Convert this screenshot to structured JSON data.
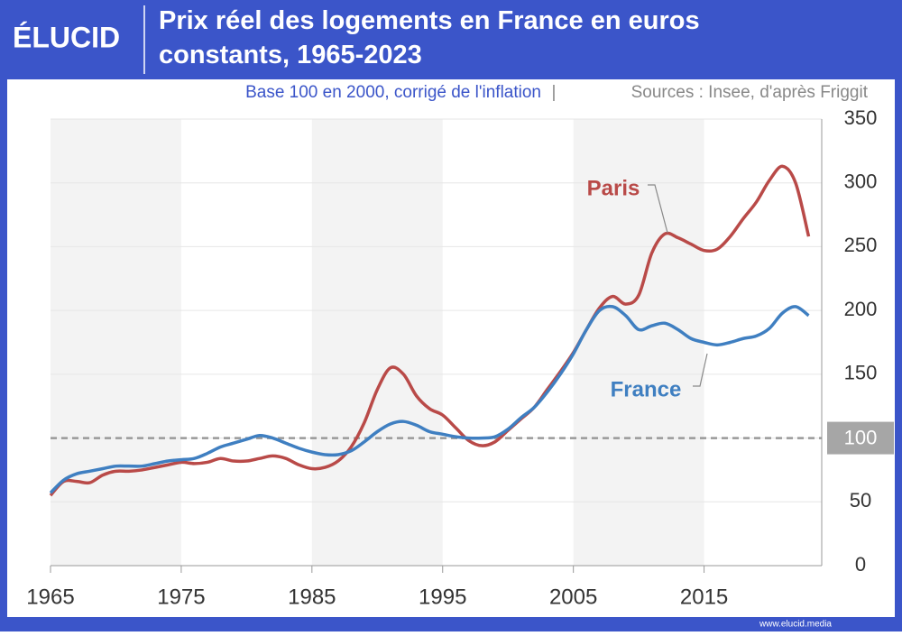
{
  "brand": "ÉLUCID",
  "footer": "www.elucid.media",
  "chart_data": {
    "type": "line",
    "title": "Prix réel des logements en France en euros constants, 1965-2023",
    "subtitle": "Base 100 en 2000, corrigé de l'inflation",
    "source": "Sources : Insee, d'après Friggit",
    "x": [
      1965,
      1966,
      1967,
      1968,
      1969,
      1970,
      1971,
      1972,
      1973,
      1974,
      1975,
      1976,
      1977,
      1978,
      1979,
      1980,
      1981,
      1982,
      1983,
      1984,
      1985,
      1986,
      1987,
      1988,
      1989,
      1990,
      1991,
      1992,
      1993,
      1994,
      1995,
      1996,
      1997,
      1998,
      1999,
      2000,
      2001,
      2002,
      2003,
      2004,
      2005,
      2006,
      2007,
      2008,
      2009,
      2010,
      2011,
      2012,
      2013,
      2014,
      2015,
      2016,
      2017,
      2018,
      2019,
      2020,
      2021,
      2022,
      2023
    ],
    "series": [
      {
        "name": "Paris",
        "color": "#b94a48",
        "values": [
          55,
          66,
          66,
          65,
          71,
          74,
          74,
          75,
          77,
          79,
          81,
          80,
          81,
          84,
          82,
          82,
          84,
          86,
          84,
          79,
          76,
          77,
          82,
          93,
          112,
          138,
          155,
          150,
          133,
          123,
          118,
          108,
          98,
          94,
          97,
          106,
          115,
          124,
          138,
          152,
          167,
          185,
          202,
          211,
          205,
          212,
          245,
          260,
          257,
          252,
          247,
          248,
          258,
          272,
          285,
          302,
          313,
          300,
          258
        ]
      },
      {
        "name": "France",
        "color": "#3f7fc1",
        "values": [
          57,
          67,
          72,
          74,
          76,
          78,
          78,
          78,
          80,
          82,
          83,
          84,
          88,
          93,
          96,
          99,
          102,
          100,
          96,
          92,
          89,
          87,
          87,
          90,
          97,
          105,
          111,
          113,
          110,
          105,
          103,
          101,
          100,
          100,
          101,
          107,
          116,
          124,
          136,
          150,
          166,
          185,
          200,
          203,
          196,
          185,
          188,
          190,
          185,
          178,
          175,
          173,
          175,
          178,
          180,
          186,
          198,
          203,
          196
        ]
      }
    ],
    "xlim": [
      1965,
      2024
    ],
    "xticks": [
      1965,
      1975,
      1985,
      1995,
      2005,
      2015
    ],
    "ylim": [
      0,
      350
    ],
    "yticks": [
      0,
      50,
      100,
      150,
      200,
      250,
      300,
      350
    ],
    "reference_line": 100
  }
}
